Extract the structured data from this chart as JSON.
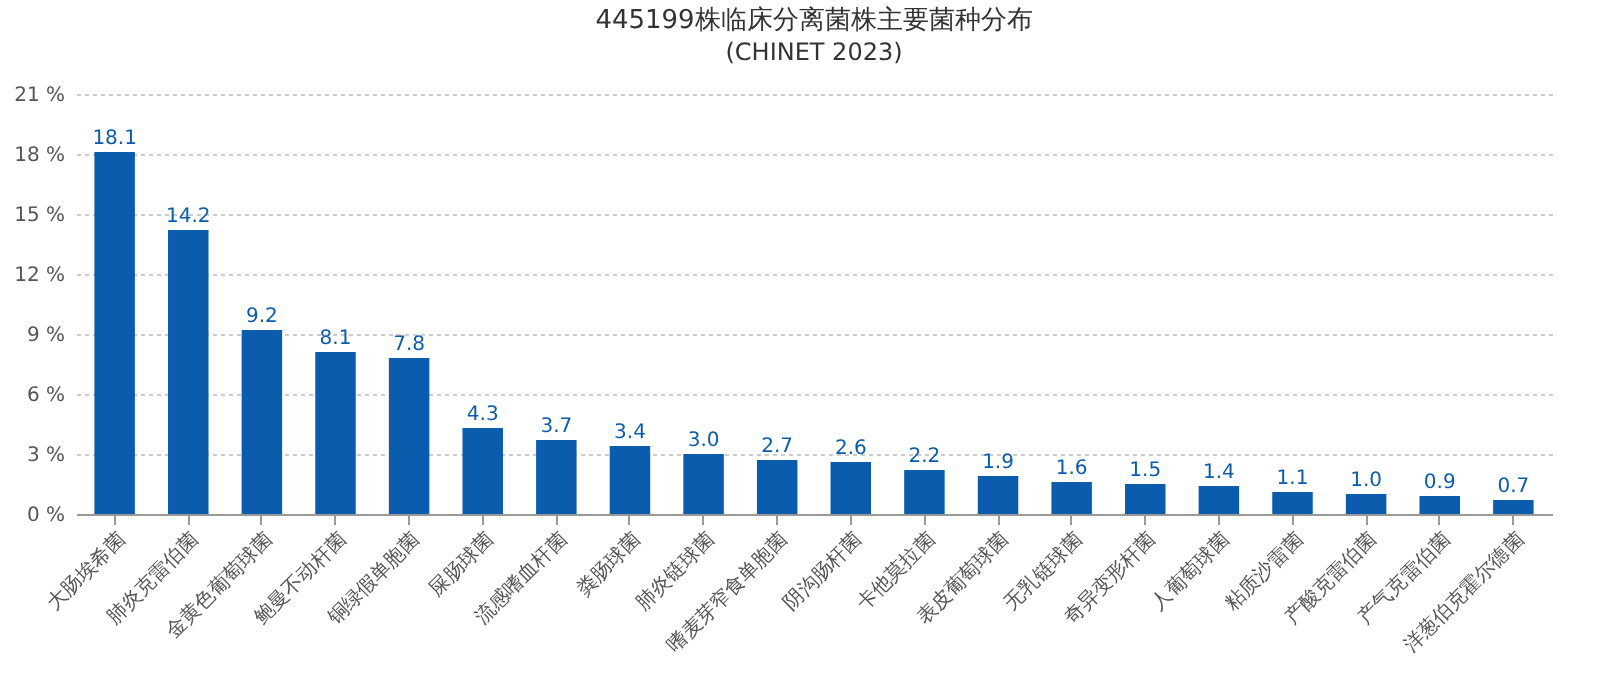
{
  "chart_data": {
    "type": "bar",
    "title": "445199株临床分离菌株主要菌种分布",
    "subtitle": "(CHINET 2023)",
    "categories": [
      "大肠埃希菌",
      "肺炎克雷伯菌",
      "金黄色葡萄球菌",
      "鲍曼不动杆菌",
      "铜绿假单胞菌",
      "屎肠球菌",
      "流感嗜血杆菌",
      "粪肠球菌",
      "肺炎链球菌",
      "嗜麦芽窄食单胞菌",
      "阴沟肠杆菌",
      "卡他莫拉菌",
      "表皮葡萄球菌",
      "无乳链球菌",
      "奇异变形杆菌",
      "人葡萄球菌",
      "粘质沙雷菌",
      "产酸克雷伯菌",
      "产气克雷伯菌",
      "洋葱伯克霍尔德菌"
    ],
    "values": [
      18.1,
      14.2,
      9.2,
      8.1,
      7.8,
      4.3,
      3.7,
      3.4,
      3.0,
      2.7,
      2.6,
      2.2,
      1.9,
      1.6,
      1.5,
      1.4,
      1.1,
      1.0,
      0.9,
      0.7
    ],
    "value_labels": [
      "18.1",
      "14.2",
      "9.2",
      "8.1",
      "7.8",
      "4.3",
      "3.7",
      "3.4",
      "3.0",
      "2.7",
      "2.6",
      "2.2",
      "1.9",
      "1.6",
      "1.5",
      "1.4",
      "1.1",
      "1.0",
      "0.9",
      "0.7"
    ],
    "color": "#0b5cad",
    "ylim": [
      0,
      21
    ],
    "yticks": [
      {
        "value": 0,
        "label": "0 %"
      },
      {
        "value": 3,
        "label": "3 %"
      },
      {
        "value": 6,
        "label": "6 %"
      },
      {
        "value": 9,
        "label": "9 %"
      },
      {
        "value": 12,
        "label": "12 %"
      },
      {
        "value": 15,
        "label": "15 %"
      },
      {
        "value": 18,
        "label": "18 %"
      },
      {
        "value": 21,
        "label": "21 %"
      }
    ],
    "grid": "y"
  }
}
